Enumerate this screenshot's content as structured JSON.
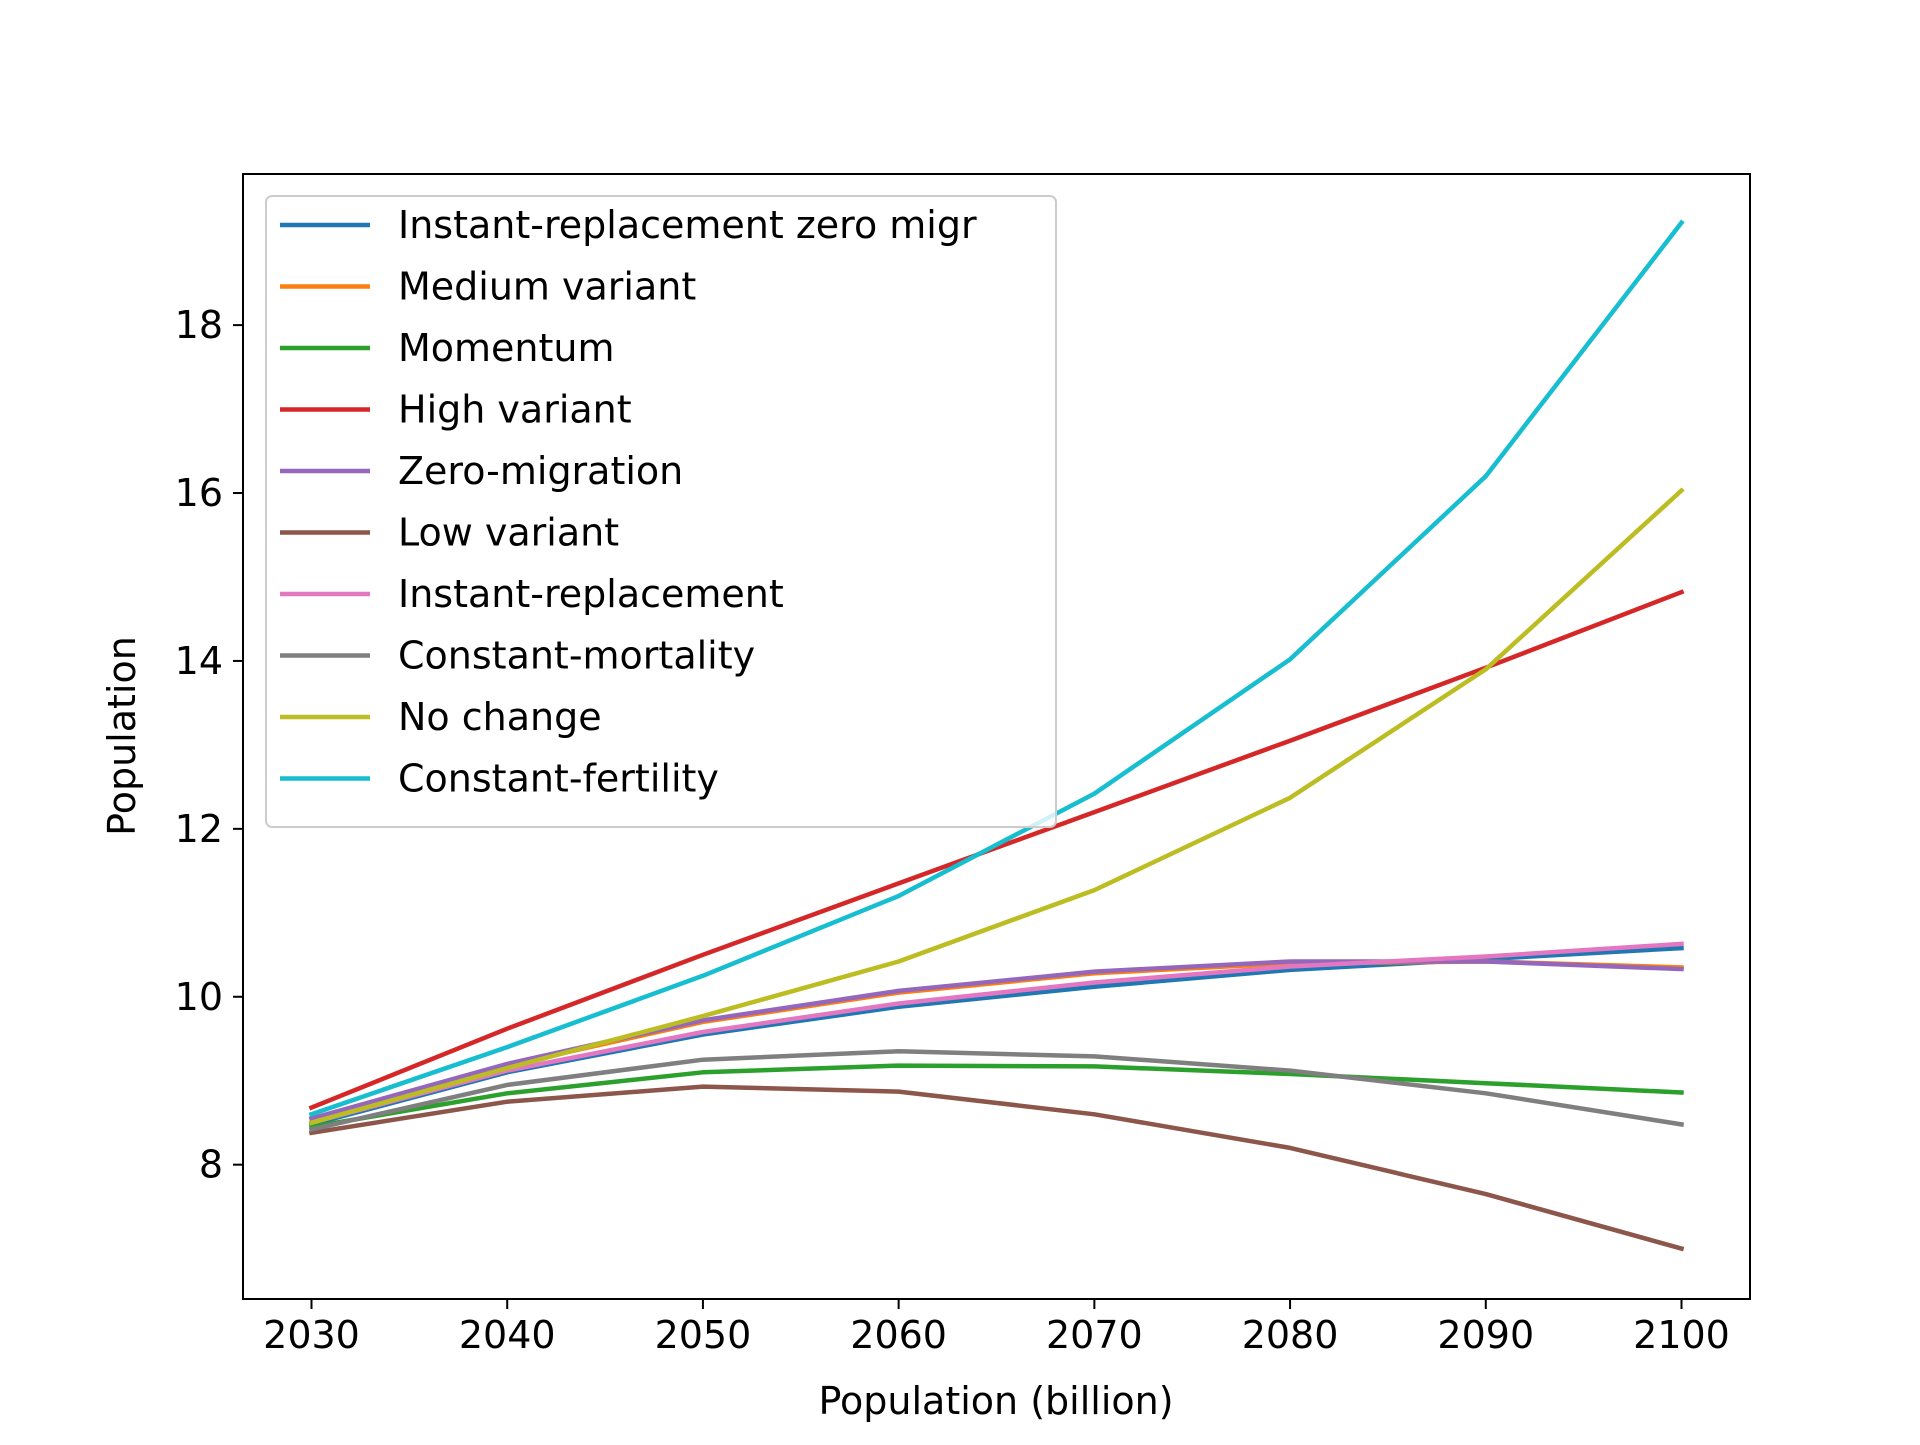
{
  "chart_data": {
    "type": "line",
    "title": "",
    "xlabel": "Population (billion)",
    "ylabel": "Population",
    "x": [
      2030,
      2040,
      2050,
      2060,
      2070,
      2080,
      2090,
      2100
    ],
    "xticks": [
      2030,
      2040,
      2050,
      2060,
      2070,
      2080,
      2090,
      2100
    ],
    "yticks": [
      8,
      10,
      12,
      14,
      16,
      18
    ],
    "xlim": [
      2026.5,
      2103.5
    ],
    "ylim": [
      6.4,
      19.8
    ],
    "grid": false,
    "legend_position": "top-left",
    "series": [
      {
        "name": "Instant-replacement zero migr",
        "color": "#1f77b4",
        "values": [
          8.48,
          9.1,
          9.55,
          9.88,
          10.12,
          10.32,
          10.45,
          10.58
        ]
      },
      {
        "name": "Medium variant",
        "color": "#ff7f0e",
        "values": [
          8.55,
          9.18,
          9.7,
          10.05,
          10.28,
          10.4,
          10.42,
          10.35
        ]
      },
      {
        "name": "Momentum",
        "color": "#2ca02c",
        "values": [
          8.45,
          8.85,
          9.1,
          9.18,
          9.17,
          9.08,
          8.97,
          8.86
        ]
      },
      {
        "name": "High variant",
        "color": "#d62728",
        "values": [
          8.68,
          9.62,
          10.5,
          11.35,
          12.2,
          13.05,
          13.92,
          14.82
        ]
      },
      {
        "name": "Zero-migration",
        "color": "#9467bd",
        "values": [
          8.55,
          9.2,
          9.72,
          10.07,
          10.3,
          10.42,
          10.42,
          10.33
        ]
      },
      {
        "name": "Low variant",
        "color": "#8c564b",
        "values": [
          8.38,
          8.75,
          8.93,
          8.87,
          8.6,
          8.2,
          7.65,
          7.0
        ]
      },
      {
        "name": "Instant-replacement",
        "color": "#e377c2",
        "values": [
          8.5,
          9.12,
          9.58,
          9.92,
          10.17,
          10.36,
          10.48,
          10.63
        ]
      },
      {
        "name": "Constant-mortality",
        "color": "#7f7f7f",
        "values": [
          8.42,
          8.95,
          9.25,
          9.35,
          9.29,
          9.12,
          8.85,
          8.48
        ]
      },
      {
        "name": "No change",
        "color": "#bcbd22",
        "values": [
          8.5,
          9.15,
          9.77,
          10.42,
          11.27,
          12.37,
          13.9,
          16.03
        ]
      },
      {
        "name": "Constant-fertility",
        "color": "#17becf",
        "values": [
          8.6,
          9.4,
          10.25,
          11.2,
          12.42,
          14.02,
          16.2,
          19.22
        ]
      }
    ]
  }
}
